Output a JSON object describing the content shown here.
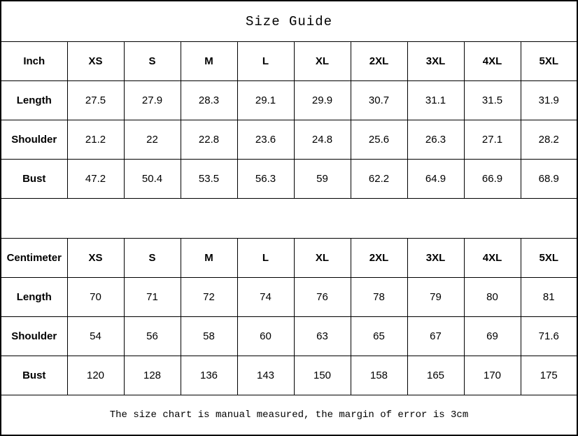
{
  "title": "Size Guide",
  "footer_note": "The size chart is manual measured, the margin of error is 3cm",
  "colors": {
    "border": "#000000",
    "text": "#000000",
    "background": "#ffffff"
  },
  "tables": [
    {
      "unit_label": "Inch",
      "sizes": [
        "XS",
        "S",
        "M",
        "L",
        "XL",
        "2XL",
        "3XL",
        "4XL",
        "5XL"
      ],
      "rows": [
        {
          "label": "Length",
          "values": [
            "27.5",
            "27.9",
            "28.3",
            "29.1",
            "29.9",
            "30.7",
            "31.1",
            "31.5",
            "31.9"
          ]
        },
        {
          "label": "Shoulder",
          "values": [
            "21.2",
            "22",
            "22.8",
            "23.6",
            "24.8",
            "25.6",
            "26.3",
            "27.1",
            "28.2"
          ]
        },
        {
          "label": "Bust",
          "values": [
            "47.2",
            "50.4",
            "53.5",
            "56.3",
            "59",
            "62.2",
            "64.9",
            "66.9",
            "68.9"
          ]
        }
      ]
    },
    {
      "unit_label": "Centimeter",
      "sizes": [
        "XS",
        "S",
        "M",
        "L",
        "XL",
        "2XL",
        "3XL",
        "4XL",
        "5XL"
      ],
      "rows": [
        {
          "label": "Length",
          "values": [
            "70",
            "71",
            "72",
            "74",
            "76",
            "78",
            "79",
            "80",
            "81"
          ]
        },
        {
          "label": "Shoulder",
          "values": [
            "54",
            "56",
            "58",
            "60",
            "63",
            "65",
            "67",
            "69",
            "71.6"
          ]
        },
        {
          "label": "Bust",
          "values": [
            "120",
            "128",
            "136",
            "143",
            "150",
            "158",
            "165",
            "170",
            "175"
          ]
        }
      ]
    }
  ]
}
